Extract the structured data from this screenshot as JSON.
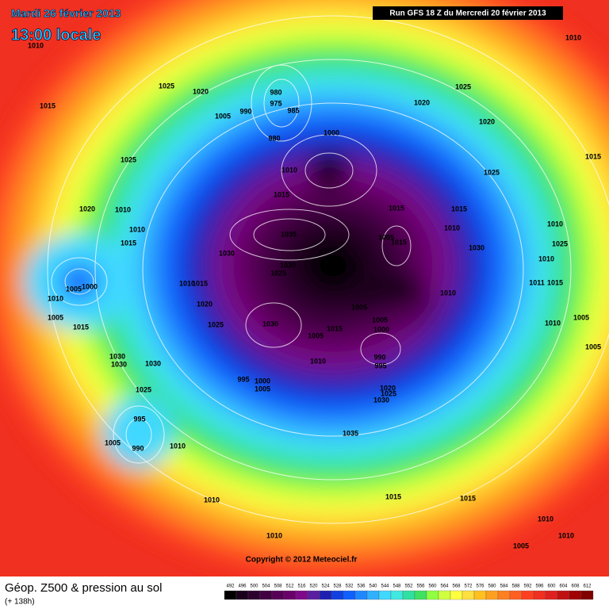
{
  "header": {
    "title": "Mardi 26 février 2013",
    "subtitle": "13:00 locale",
    "run": "Run GFS 18 Z du Mercredi 20 février 2013"
  },
  "map": {
    "pressure_labels": [
      1010,
      1010,
      1025,
      1020,
      1015,
      980,
      975,
      985,
      1005,
      990,
      1000,
      980,
      1025,
      1020,
      1020,
      1025,
      1010,
      1025,
      1015,
      1015,
      1020,
      1010,
      1015,
      1015,
      1010,
      1010,
      1035,
      1010,
      1005,
      1015,
      1015,
      1025,
      1030,
      1030,
      1010,
      1030,
      1025,
      1005,
      1000,
      1010,
      1015,
      1011,
      1015,
      1010,
      1010,
      1020,
      1005,
      1005,
      1005,
      1030,
      1015,
      1000,
      1025,
      1015,
      1010,
      1005,
      1005,
      1005,
      990,
      995,
      1010,
      1030,
      1030,
      1030,
      995,
      1000,
      1005,
      1025,
      1020,
      1025,
      1030,
      995,
      1005,
      990,
      1010,
      1035,
      1010,
      1015,
      1015,
      1010,
      1010,
      1005,
      1010
    ]
  },
  "footer": {
    "field": "Géop. Z500 & pression au sol",
    "lead": "(+ 138h)",
    "copyright": "Copyright © 2012 Meteociel.fr"
  },
  "scale": {
    "values": [
      492,
      496,
      500,
      504,
      508,
      512,
      516,
      520,
      524,
      528,
      532,
      536,
      540,
      544,
      548,
      552,
      556,
      560,
      564,
      568,
      572,
      576,
      580,
      584,
      588,
      592,
      596,
      600,
      604,
      608,
      612
    ],
    "colors": [
      "#000000",
      "#1a001a",
      "#2e002e",
      "#420042",
      "#560056",
      "#6a006a",
      "#7e0a8a",
      "#5a1fa0",
      "#2020b0",
      "#1040e0",
      "#1060ff",
      "#2088ff",
      "#30b0ff",
      "#40d8ff",
      "#40e8e0",
      "#30e0a0",
      "#40e060",
      "#90ff40",
      "#d0ff40",
      "#ffff40",
      "#ffe040",
      "#ffc020",
      "#ffa020",
      "#ff8020",
      "#ff6020",
      "#ff4020",
      "#f03020",
      "#e02020",
      "#c01010",
      "#a00000",
      "#800000"
    ]
  }
}
